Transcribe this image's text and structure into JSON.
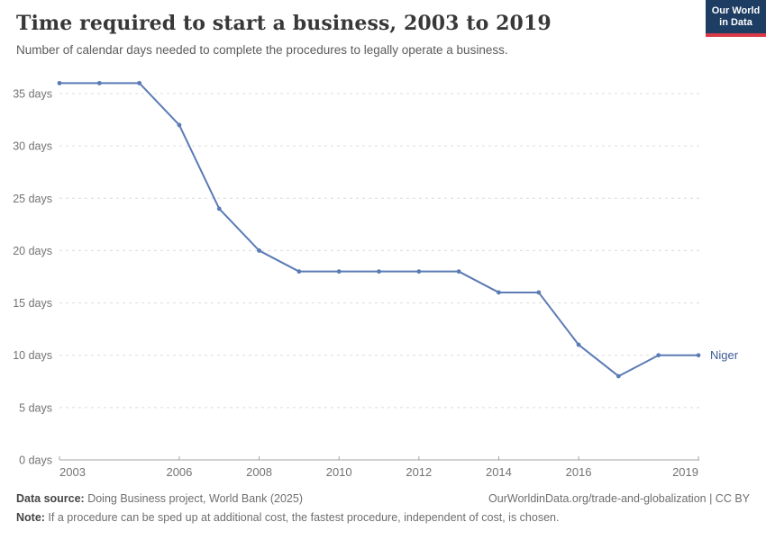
{
  "header": {
    "title": "Time required to start a business, 2003 to 2019",
    "subtitle": "Number of calendar days needed to complete the procedures to legally operate a business.",
    "logo": {
      "line1": "Our World",
      "line2": "in Data",
      "bg_color": "#1d3d63",
      "accent_color": "#d93a4a"
    }
  },
  "chart_data": {
    "type": "line",
    "title": "Time required to start a business, 2003 to 2019",
    "xlabel": "",
    "ylabel": "days",
    "x": [
      2003,
      2004,
      2005,
      2006,
      2007,
      2008,
      2009,
      2010,
      2011,
      2012,
      2013,
      2014,
      2015,
      2016,
      2017,
      2018,
      2019
    ],
    "series": [
      {
        "name": "Niger",
        "color": "#5b7bb5",
        "label_color": "#3d5b96",
        "values": [
          36,
          36,
          36,
          32,
          24,
          20,
          18,
          18,
          18,
          18,
          18,
          16,
          16,
          11,
          8,
          10,
          10
        ]
      }
    ],
    "xlim": [
      2003,
      2019
    ],
    "ylim": [
      0,
      36.5
    ],
    "yticks": [
      0,
      5,
      10,
      15,
      20,
      25,
      30,
      35
    ],
    "ytick_labels": [
      "0 days",
      "5 days",
      "10 days",
      "15 days",
      "20 days",
      "25 days",
      "30 days",
      "35 days"
    ],
    "xticks": [
      2003,
      2006,
      2008,
      2010,
      2012,
      2014,
      2016,
      2019
    ],
    "xtick_labels": [
      "2003",
      "2006",
      "2008",
      "2010",
      "2012",
      "2014",
      "2016",
      "2019"
    ],
    "grid": "horizontal-dashed",
    "legend_position": "end-of-line",
    "end_label": "Niger",
    "grid_color": "#dcdcdc",
    "axis_color": "#a3a3a3",
    "tick_label_color": "#737373"
  },
  "footer": {
    "data_source_label": "Data source:",
    "data_source": " Doing Business project, World Bank (2025)",
    "attribution": "OurWorldinData.org/trade-and-globalization | CC BY",
    "note_label": "Note:",
    "note": " If a procedure can be sped up at additional cost, the fastest procedure, independent of cost, is chosen."
  }
}
